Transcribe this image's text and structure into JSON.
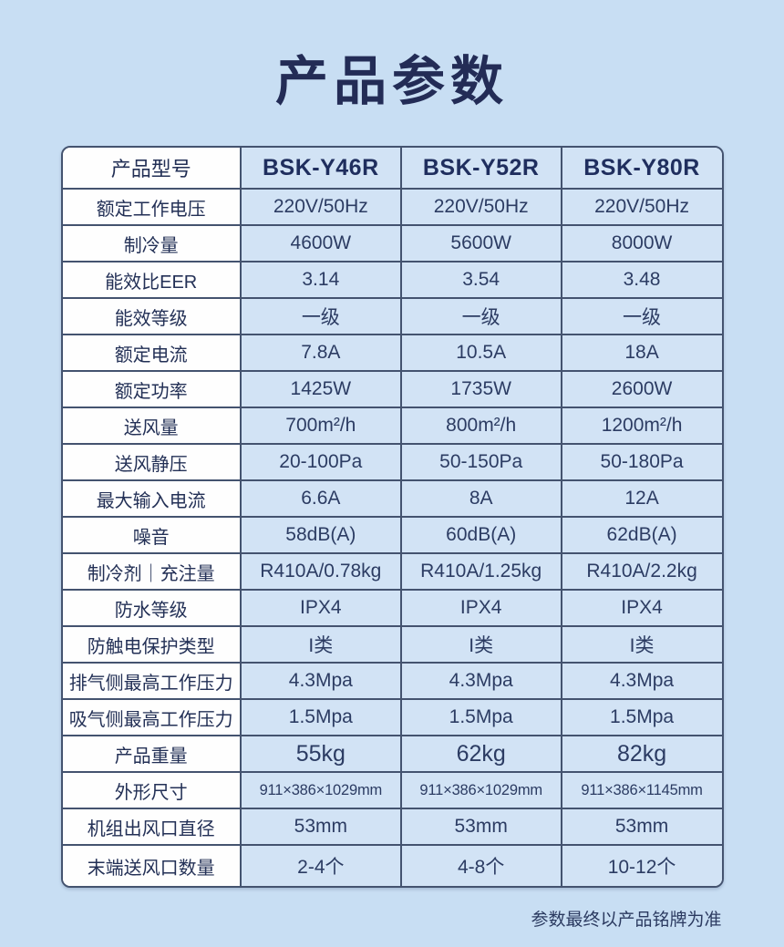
{
  "page": {
    "title": "产品参数",
    "footnote": "参数最终以产品铭牌为准"
  },
  "colors": {
    "page_background": "#c8def3",
    "cell_fill": "#d2e3f5",
    "label_fill": "#fefefe",
    "border": "#44536f",
    "title_text": "#232c56",
    "value_text": "#2c3c63"
  },
  "table": {
    "header": {
      "label": "产品型号",
      "models": [
        "BSK-Y46R",
        "BSK-Y52R",
        "BSK-Y80R"
      ]
    },
    "rows": [
      {
        "label": "额定工作电压",
        "values": [
          "220V/50Hz",
          "220V/50Hz",
          "220V/50Hz"
        ]
      },
      {
        "label": "制冷量",
        "values": [
          "4600W",
          "5600W",
          "8000W"
        ]
      },
      {
        "label": "能效比EER",
        "values": [
          "3.14",
          "3.54",
          "3.48"
        ]
      },
      {
        "label": "能效等级",
        "values": [
          "一级",
          "一级",
          "一级"
        ]
      },
      {
        "label": "额定电流",
        "values": [
          "7.8A",
          "10.5A",
          "18A"
        ]
      },
      {
        "label": "额定功率",
        "values": [
          "1425W",
          "1735W",
          "2600W"
        ]
      },
      {
        "label": "送风量",
        "values": [
          "700m²/h",
          "800m²/h",
          "1200m²/h"
        ]
      },
      {
        "label": "送风静压",
        "values": [
          "20-100Pa",
          "50-150Pa",
          "50-180Pa"
        ]
      },
      {
        "label": "最大输入电流",
        "values": [
          "6.6A",
          "8A",
          "12A"
        ]
      },
      {
        "label": "噪音",
        "values": [
          "58dB(A)",
          "60dB(A)",
          "62dB(A)"
        ]
      },
      {
        "label": "制冷剂｜充注量",
        "values": [
          "R410A/0.78kg",
          "R410A/1.25kg",
          "R410A/2.2kg"
        ]
      },
      {
        "label": "防水等级",
        "values": [
          "IPX4",
          "IPX4",
          "IPX4"
        ]
      },
      {
        "label": "防触电保护类型",
        "values": [
          "I类",
          "I类",
          "I类"
        ]
      },
      {
        "label": "排气侧最高工作压力",
        "values": [
          "4.3Mpa",
          "4.3Mpa",
          "4.3Mpa"
        ]
      },
      {
        "label": "吸气侧最高工作压力",
        "values": [
          "1.5Mpa",
          "1.5Mpa",
          "1.5Mpa"
        ]
      },
      {
        "label": "产品重量",
        "values": [
          "55kg",
          "62kg",
          "82kg"
        ]
      },
      {
        "label": "外形尺寸",
        "values": [
          "911×386×1029mm",
          "911×386×1029mm",
          "911×386×1145mm"
        ]
      },
      {
        "label": "机组出风口直径",
        "values": [
          "53mm",
          "53mm",
          "53mm"
        ]
      },
      {
        "label": "末端送风口数量",
        "values": [
          "2-4个",
          "4-8个",
          "10-12个"
        ]
      }
    ]
  }
}
